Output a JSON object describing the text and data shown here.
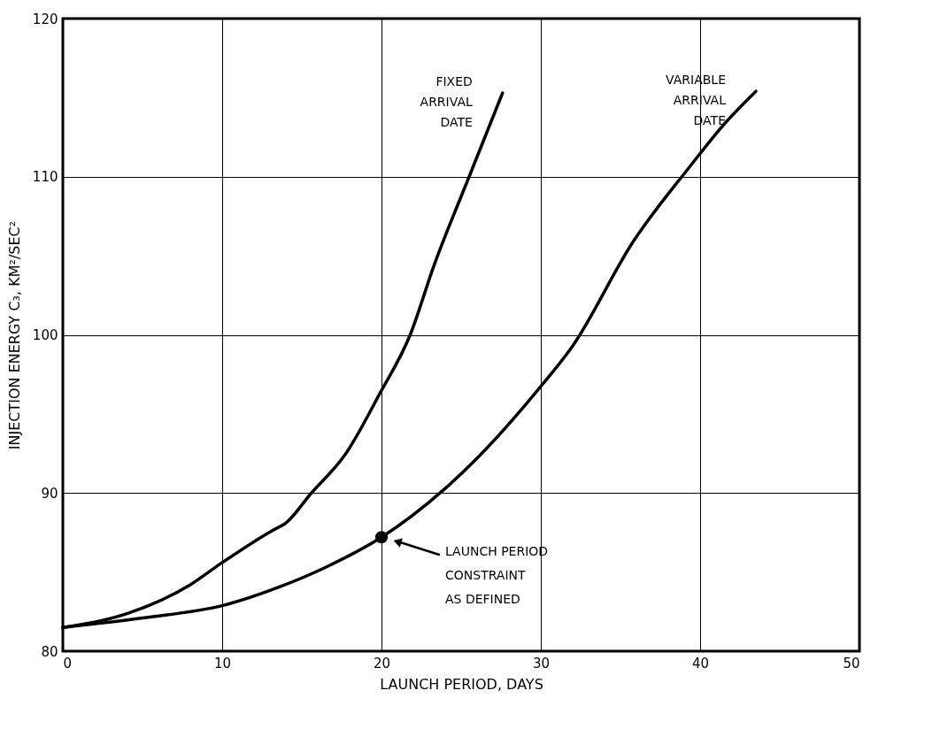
{
  "chart_data": {
    "type": "line",
    "xlabel": "LAUNCH PERIOD, DAYS",
    "ylabel": "INJECTION ENERGY C₃, KM²/SEC²",
    "xlim": [
      0,
      50
    ],
    "xticks": [
      0,
      10,
      20,
      30,
      40,
      50
    ],
    "ylim": [
      80,
      120
    ],
    "yticks": [
      80,
      90,
      100,
      110,
      120
    ],
    "grid": true,
    "marker": "none",
    "line_style": "solid",
    "series": [
      {
        "name": "FIXED\nARRIVAL\nDATE",
        "color": "#000000",
        "x": [
          0,
          4.1,
          8.0,
          10,
          13.1,
          14.0,
          15.6,
          17.7,
          19.9,
          21.8,
          23.3,
          25.5,
          27.6
        ],
        "values": [
          81.5,
          82.4,
          84.2,
          85.6,
          87.6,
          88.1,
          90.0,
          92.4,
          96.3,
          100.0,
          104.4,
          110.0,
          115.3
        ]
      },
      {
        "name": "VARIABLE\nARRIVAL\nDATE",
        "color": "#000000",
        "x": [
          0,
          5,
          10.1,
          13.7,
          16.7,
          20,
          23.9,
          25.9,
          29.8,
          32.0,
          35.8,
          39.4,
          41.4,
          43.5
        ],
        "values": [
          81.5,
          82.1,
          82.9,
          84.1,
          85.4,
          87.2,
          90.2,
          92.1,
          96.5,
          99.3,
          105.9,
          110.7,
          113.2,
          115.4
        ]
      },
      {
        "type": "scatter",
        "marker": "circle",
        "color": "#000000",
        "x": [
          20
        ],
        "values": [
          87.2
        ]
      }
    ],
    "annotations": [
      "LAUNCH PERIOD\nCONSTRAINT\nAS DEFINED"
    ]
  }
}
